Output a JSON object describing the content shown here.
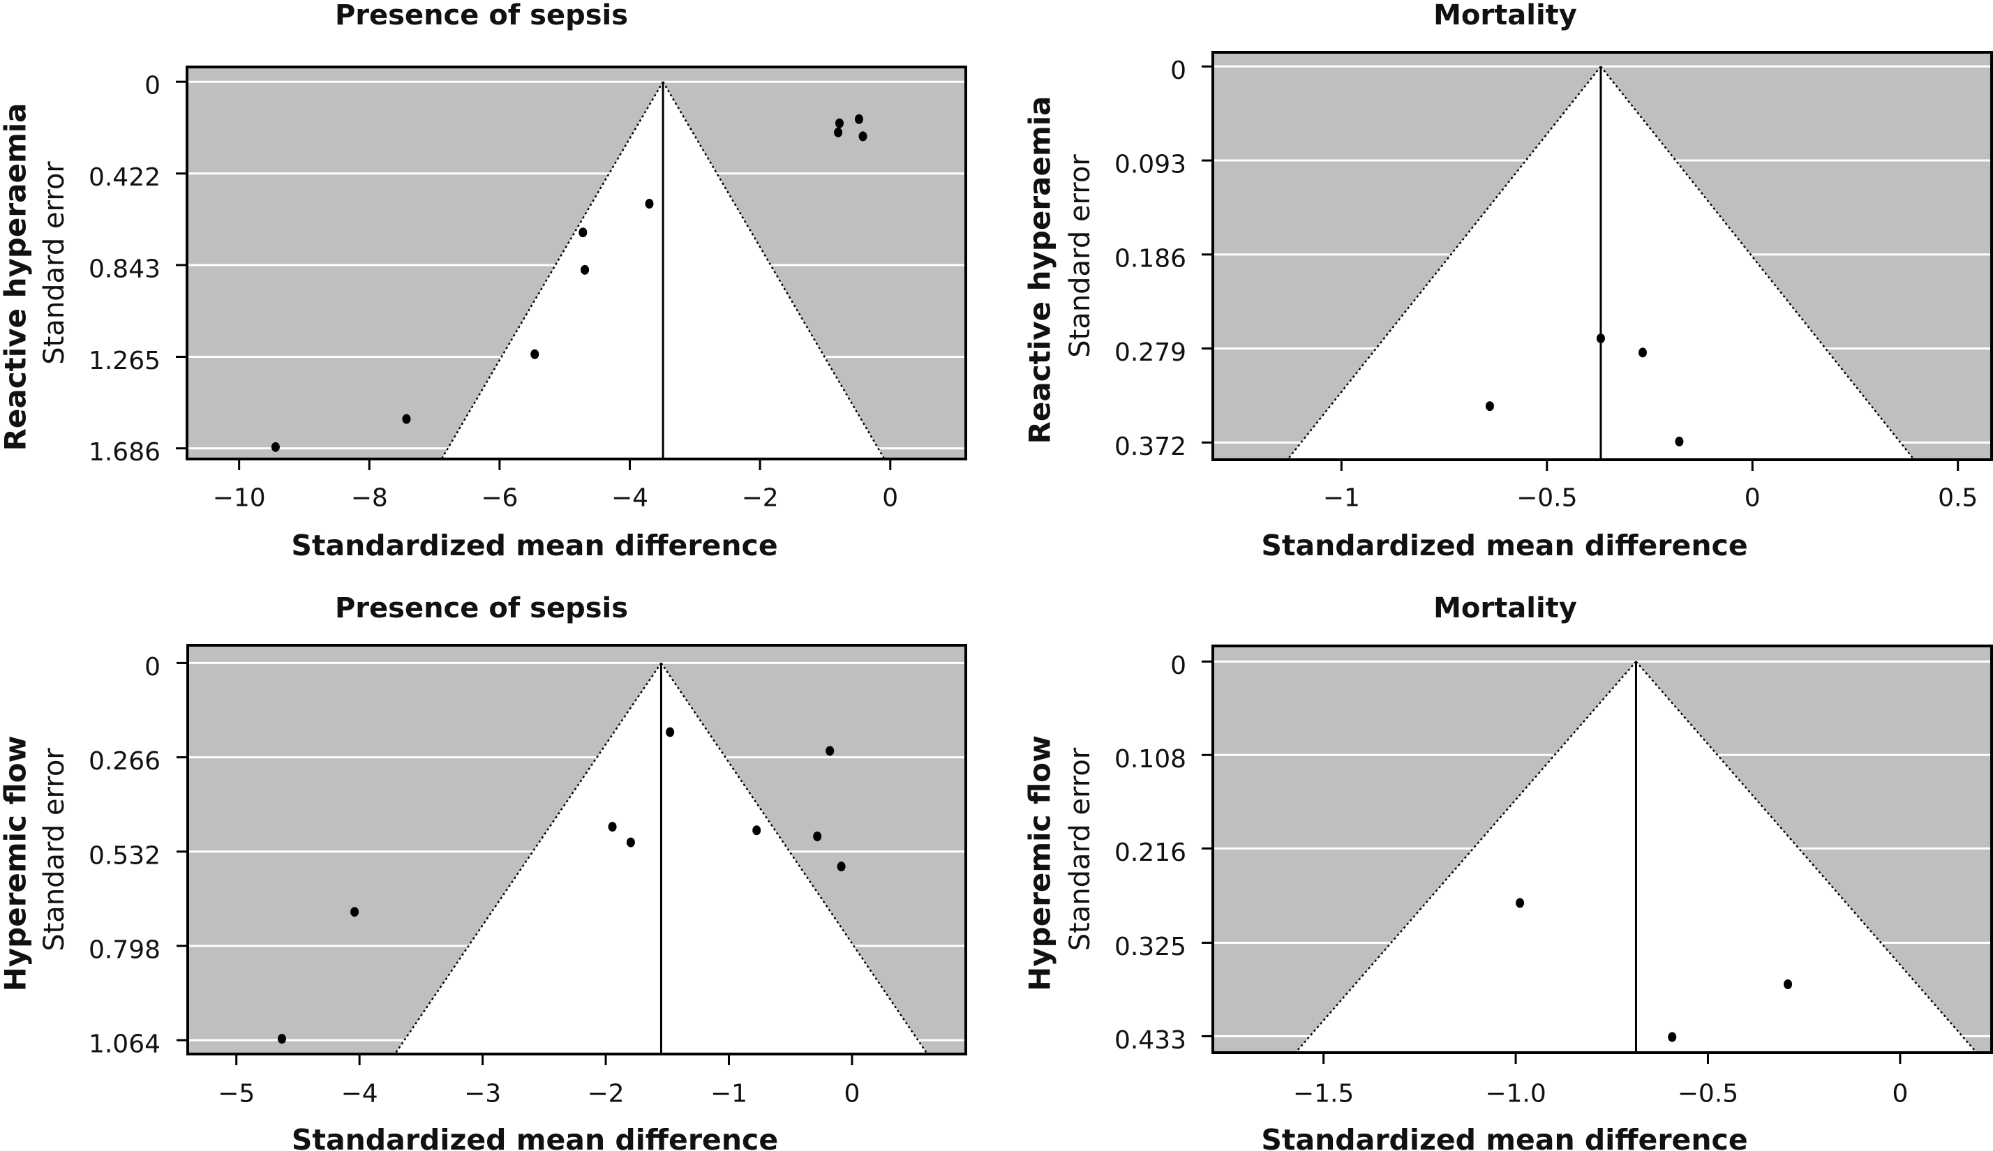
{
  "chart_data": [
    {
      "type": "scatter",
      "subtype": "funnel",
      "position": "top-left",
      "title": "Presence of sepsis",
      "xlabel": "Standardized mean difference",
      "ylabel_group": "Reactive hyperaemia",
      "ylabel": "Standard error",
      "xlim": [
        -10.8,
        1.16
      ],
      "ylim": [
        1.735,
        -0.068
      ],
      "x_ticks": [
        -10,
        -8,
        -6,
        -4,
        -2,
        0
      ],
      "x_tick_labels": [
        "−10",
        "−8",
        "−6",
        "−4",
        "−2",
        "0"
      ],
      "y_ticks": [
        0,
        0.422,
        0.843,
        1.265,
        1.686
      ],
      "y_tick_labels": [
        "0",
        "0.422",
        "0.843",
        "1.265",
        "1.686"
      ],
      "grid": true,
      "pooled_effect": -3.49,
      "points": [
        {
          "x": -0.8,
          "y": 0.233
        },
        {
          "x": -0.78,
          "y": 0.191
        },
        {
          "x": -0.48,
          "y": 0.172
        },
        {
          "x": -0.42,
          "y": 0.251
        },
        {
          "x": -3.7,
          "y": 0.561
        },
        {
          "x": -4.72,
          "y": 0.693
        },
        {
          "x": -4.69,
          "y": 0.865
        },
        {
          "x": -5.46,
          "y": 1.253
        },
        {
          "x": -7.43,
          "y": 1.551
        },
        {
          "x": -9.44,
          "y": 1.68
        }
      ]
    },
    {
      "type": "scatter",
      "subtype": "funnel",
      "position": "top-right",
      "title": "Mortality",
      "xlabel": "Standardized mean difference",
      "ylabel_group": "Reactive hyperaemia",
      "ylabel": "Standard error",
      "xlim": [
        -1.313,
        0.582
      ],
      "ylim": [
        0.389,
        -0.014
      ],
      "x_ticks": [
        -1,
        -0.5,
        0,
        0.5
      ],
      "x_tick_labels": [
        "−1",
        "−0.5",
        "0",
        "0.5"
      ],
      "y_ticks": [
        0,
        0.093,
        0.186,
        0.279,
        0.372
      ],
      "y_tick_labels": [
        "0",
        "0.093",
        "0.186",
        "0.279",
        "0.372"
      ],
      "grid": true,
      "pooled_effect": -0.369,
      "points": [
        {
          "x": -0.369,
          "y": 0.269
        },
        {
          "x": -0.267,
          "y": 0.283
        },
        {
          "x": -0.639,
          "y": 0.336
        },
        {
          "x": -0.178,
          "y": 0.371
        }
      ]
    },
    {
      "type": "scatter",
      "subtype": "funnel",
      "position": "bottom-left",
      "title": "Presence of sepsis",
      "xlabel": "Standardized mean difference",
      "ylabel_group": "Hyperemic flow",
      "ylabel": "Standard error",
      "xlim": [
        -5.395,
        0.924
      ],
      "ylim": [
        1.103,
        -0.05
      ],
      "x_ticks": [
        -5,
        -4,
        -3,
        -2,
        -1,
        0
      ],
      "x_tick_labels": [
        "−5",
        "−4",
        "−3",
        "−2",
        "−1",
        "0"
      ],
      "y_ticks": [
        0,
        0.266,
        0.532,
        0.798,
        1.064
      ],
      "y_tick_labels": [
        "0",
        "0.266",
        "0.532",
        "0.798",
        "1.064"
      ],
      "grid": true,
      "pooled_effect": -1.55,
      "points": [
        {
          "x": -1.478,
          "y": 0.195
        },
        {
          "x": -0.18,
          "y": 0.248
        },
        {
          "x": -1.946,
          "y": 0.462
        },
        {
          "x": -1.797,
          "y": 0.506
        },
        {
          "x": -0.775,
          "y": 0.472
        },
        {
          "x": -0.282,
          "y": 0.489
        },
        {
          "x": -0.087,
          "y": 0.574
        },
        {
          "x": -4.04,
          "y": 0.702
        },
        {
          "x": -4.63,
          "y": 1.06
        }
      ]
    },
    {
      "type": "scatter",
      "subtype": "funnel",
      "position": "bottom-right",
      "title": "Mortality",
      "xlabel": "Standardized mean difference",
      "ylabel_group": "Hyperemic flow",
      "ylabel": "Standard error",
      "xlim": [
        -1.788,
        0.238
      ],
      "ylim": [
        0.452,
        -0.018
      ],
      "x_ticks": [
        -1.5,
        -1.0,
        -0.5,
        0
      ],
      "x_tick_labels": [
        "−1.5",
        "−1.0",
        "−0.5",
        "0"
      ],
      "y_ticks": [
        0,
        0.108,
        0.216,
        0.325,
        0.433
      ],
      "y_tick_labels": [
        "0",
        "0.108",
        "0.216",
        "0.325",
        "0.433"
      ],
      "grid": true,
      "pooled_effect": -0.687,
      "points": [
        {
          "x": -0.989,
          "y": 0.279
        },
        {
          "x": -0.292,
          "y": 0.373
        },
        {
          "x": -0.593,
          "y": 0.434
        }
      ]
    }
  ],
  "colors": {
    "outside_funnel": "#bebfc1",
    "inside_funnel": "#ffffff",
    "gridline": "#ffffff",
    "point": "#000000",
    "axis": "#000000"
  },
  "funnel_z": 1.96
}
